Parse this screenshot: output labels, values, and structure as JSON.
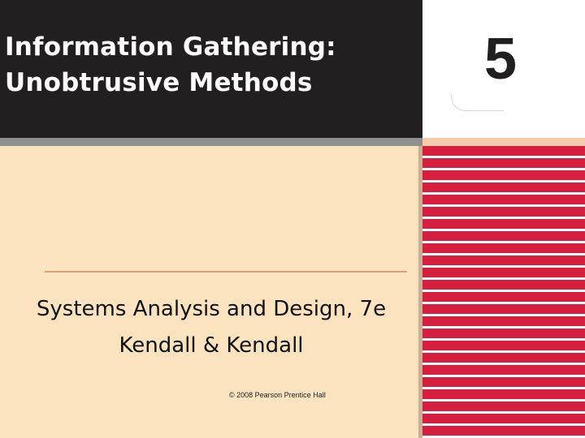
{
  "slide": {
    "title_lines": [
      "Information Gathering:",
      "Unobtrusive Methods"
    ],
    "chapter_number": "5",
    "subtitle_line1": "Systems Analysis and Design, 7e",
    "subtitle_line2": "Kendall & Kendall",
    "copyright": "© 2008 Pearson Prentice Hall"
  },
  "colors": {
    "title_panel": "#221f20",
    "background": "#fbe3bf",
    "stripe_red": "#d61e3f",
    "rule": "#d9a07a"
  }
}
